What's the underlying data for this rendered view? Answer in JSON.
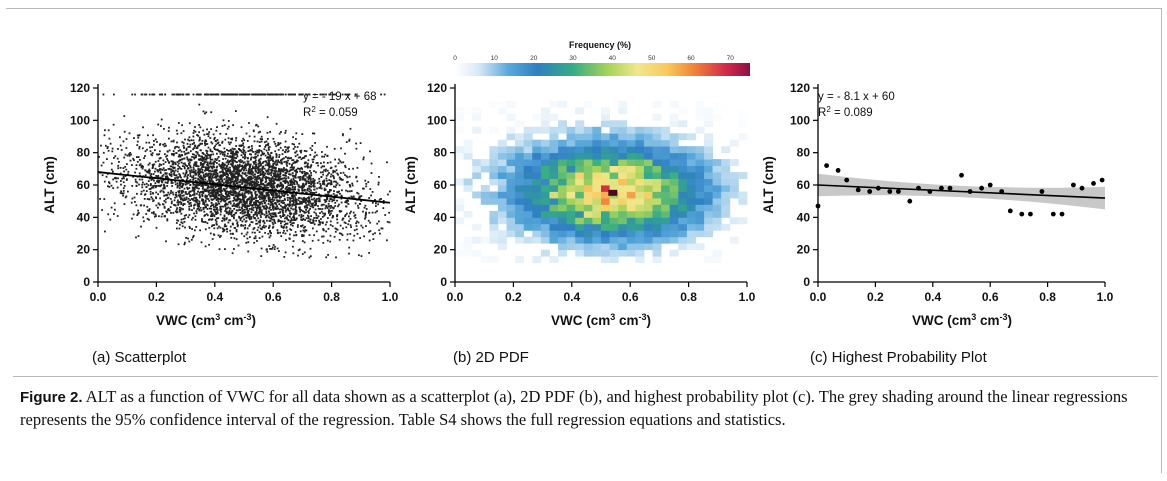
{
  "chart_data": [
    {
      "type": "scatter",
      "panel_label": "(a) Scatterplot",
      "xlabel": "VWC (cm3 cm-3)",
      "ylabel": "ALT (cm)",
      "xlim": [
        0,
        1
      ],
      "ylim": [
        0,
        120
      ],
      "xticks": [
        "0.0",
        "0.2",
        "0.4",
        "0.6",
        "0.8",
        "1.0"
      ],
      "yticks": [
        "0",
        "20",
        "40",
        "60",
        "80",
        "100",
        "120"
      ],
      "equation": "y = - 19 x + 68",
      "r2": "R2 = 0.059",
      "regression": {
        "slope": -19,
        "intercept": 68
      },
      "points_description_n": 4500,
      "color": "#222222"
    },
    {
      "type": "heatmap",
      "panel_label": "(b) 2D PDF",
      "xlabel": "VWC (cm3 cm-3)",
      "ylabel": "ALT (cm)",
      "xlim": [
        0,
        1
      ],
      "ylim": [
        0,
        120
      ],
      "xticks": [
        "0.0",
        "0.2",
        "0.4",
        "0.6",
        "0.8",
        "1.0"
      ],
      "yticks": [
        "0",
        "20",
        "40",
        "60",
        "80",
        "100",
        "120"
      ],
      "colorbar": {
        "title": "Frequency (%)",
        "ticks": [
          "0",
          "10",
          "20",
          "30",
          "40",
          "50",
          "60",
          "70"
        ],
        "range": [
          0,
          75
        ]
      },
      "peak": {
        "x": 0.54,
        "y": 55,
        "value": 75
      }
    },
    {
      "type": "scatter",
      "panel_label": "(c) Highest Probability Plot",
      "xlabel": "VWC (cm3 cm-3)",
      "ylabel": "ALT (cm)",
      "xlim": [
        0,
        1
      ],
      "ylim": [
        0,
        120
      ],
      "xticks": [
        "0.0",
        "0.2",
        "0.4",
        "0.6",
        "0.8",
        "1.0"
      ],
      "yticks": [
        "0",
        "20",
        "40",
        "60",
        "80",
        "100",
        "120"
      ],
      "equation": "y = - 8.1 x + 60",
      "r2": "R2 = 0.089",
      "regression": {
        "slope": -8.1,
        "intercept": 60
      },
      "confidence_band_color": "#c8c8c8",
      "points": [
        {
          "x": 0.0,
          "y": 47
        },
        {
          "x": 0.03,
          "y": 72
        },
        {
          "x": 0.07,
          "y": 69
        },
        {
          "x": 0.1,
          "y": 63
        },
        {
          "x": 0.14,
          "y": 57
        },
        {
          "x": 0.18,
          "y": 56
        },
        {
          "x": 0.21,
          "y": 58
        },
        {
          "x": 0.25,
          "y": 56
        },
        {
          "x": 0.28,
          "y": 56
        },
        {
          "x": 0.32,
          "y": 50
        },
        {
          "x": 0.35,
          "y": 58
        },
        {
          "x": 0.39,
          "y": 56
        },
        {
          "x": 0.43,
          "y": 58
        },
        {
          "x": 0.46,
          "y": 58
        },
        {
          "x": 0.5,
          "y": 66
        },
        {
          "x": 0.53,
          "y": 56
        },
        {
          "x": 0.57,
          "y": 58
        },
        {
          "x": 0.6,
          "y": 60
        },
        {
          "x": 0.64,
          "y": 56
        },
        {
          "x": 0.67,
          "y": 44
        },
        {
          "x": 0.71,
          "y": 42
        },
        {
          "x": 0.74,
          "y": 42
        },
        {
          "x": 0.78,
          "y": 56
        },
        {
          "x": 0.82,
          "y": 42
        },
        {
          "x": 0.85,
          "y": 42
        },
        {
          "x": 0.89,
          "y": 60
        },
        {
          "x": 0.92,
          "y": 58
        },
        {
          "x": 0.96,
          "y": 61
        },
        {
          "x": 0.99,
          "y": 63
        }
      ]
    }
  ],
  "caption": {
    "label": "Figure 2.",
    "text": " ALT as a function of VWC for all data shown as a scatterplot (a), 2D PDF (b), and highest probability plot (c). The grey shading around the linear regressions represents the 95% confidence interval of the regression. Table S4 shows the full regression equations and statistics."
  }
}
